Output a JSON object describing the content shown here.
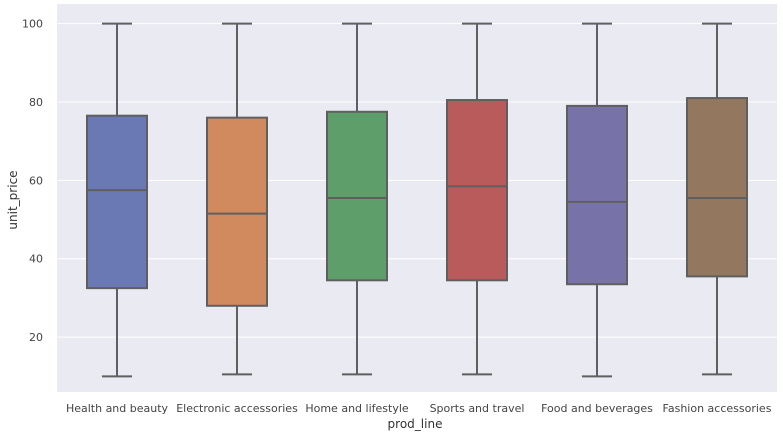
{
  "chart_data": {
    "type": "box",
    "xlabel": "prod_line",
    "ylabel": "unit_price",
    "ylim": [
      6,
      105
    ],
    "yticks": [
      20,
      40,
      60,
      80,
      100
    ],
    "grid": true,
    "categories": [
      "Health and beauty",
      "Electronic accessories",
      "Home and lifestyle",
      "Sports and travel",
      "Food and beverages",
      "Fashion accessories"
    ],
    "boxes": [
      {
        "category": "Health and beauty",
        "min": 10,
        "q1": 32.5,
        "median": 57.5,
        "q3": 76.5,
        "max": 100,
        "color": "#6a78b4"
      },
      {
        "category": "Electronic accessories",
        "min": 10.5,
        "q1": 28,
        "median": 51.5,
        "q3": 76,
        "max": 100,
        "color": "#d08a5e"
      },
      {
        "category": "Home and lifestyle",
        "min": 10.5,
        "q1": 34.5,
        "median": 55.5,
        "q3": 77.5,
        "max": 100,
        "color": "#5e9e6b"
      },
      {
        "category": "Sports and travel",
        "min": 10.5,
        "q1": 34.5,
        "median": 58.5,
        "q3": 80.5,
        "max": 100,
        "color": "#b95a5b"
      },
      {
        "category": "Food and beverages",
        "min": 10,
        "q1": 33.5,
        "median": 54.5,
        "q3": 79,
        "max": 100,
        "color": "#7773a8"
      },
      {
        "category": "Fashion accessories",
        "min": 10.5,
        "q1": 35.5,
        "median": 55.5,
        "q3": 81,
        "max": 100,
        "color": "#93785f"
      }
    ],
    "colors": {
      "plot_background": "#eaeaf2",
      "grid": "#ffffff",
      "box_edge": "#5f5f5f"
    }
  }
}
